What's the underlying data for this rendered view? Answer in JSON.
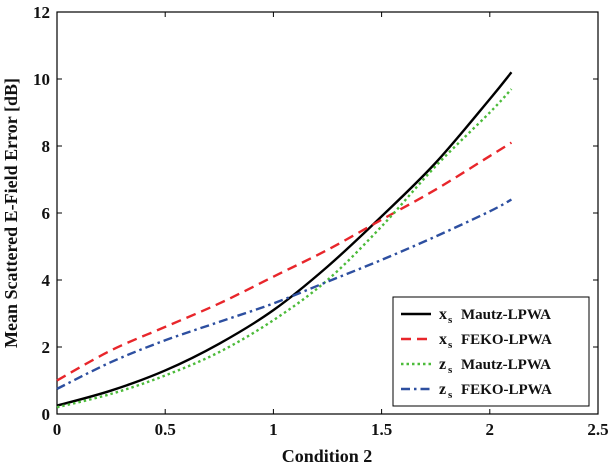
{
  "chart_data": {
    "type": "line",
    "xlabel": "Condition 2",
    "ylabel": "Mean Scattered E-Field Error [dB]",
    "xlim": [
      0,
      2.5
    ],
    "ylim": [
      0,
      12
    ],
    "xticks": [
      0,
      0.5,
      1,
      1.5,
      2,
      2.5
    ],
    "xtick_labels": [
      "0",
      "0.5",
      "1",
      "1.5",
      "2",
      "2.5"
    ],
    "yticks": [
      0,
      2,
      4,
      6,
      8,
      10,
      12
    ],
    "ytick_labels": [
      "0",
      "2",
      "4",
      "6",
      "8",
      "10",
      "12"
    ],
    "grid": false,
    "legend_position": "bottom-right",
    "series": [
      {
        "name": "Mautz-LPWA",
        "var": "x",
        "sub": "s",
        "color": "#000000",
        "dash": "solid",
        "x": [
          0,
          0.25,
          0.5,
          0.75,
          1.0,
          1.25,
          1.5,
          1.75,
          2.0,
          2.1
        ],
        "y": [
          0.25,
          0.7,
          1.3,
          2.1,
          3.1,
          4.4,
          5.9,
          7.5,
          9.4,
          10.2
        ]
      },
      {
        "name": "FEKO-LPWA",
        "var": "x",
        "sub": "s",
        "color": "#e8262b",
        "dash": "dash",
        "x": [
          0,
          0.25,
          0.5,
          0.75,
          1.0,
          1.25,
          1.5,
          1.75,
          2.0,
          2.1
        ],
        "y": [
          1.0,
          1.9,
          2.6,
          3.3,
          4.1,
          4.9,
          5.8,
          6.7,
          7.7,
          8.1
        ]
      },
      {
        "name": "Mautz-LPWA",
        "var": "z",
        "sub": "s",
        "color": "#4cbb3a",
        "dash": "dot",
        "x": [
          0,
          0.25,
          0.5,
          0.75,
          1.0,
          1.25,
          1.5,
          1.75,
          2.0,
          2.1
        ],
        "y": [
          0.2,
          0.6,
          1.15,
          1.85,
          2.8,
          4.0,
          5.6,
          7.4,
          9.0,
          9.7
        ]
      },
      {
        "name": "FEKO-LPWA",
        "var": "z",
        "sub": "s",
        "color": "#2d4fa0",
        "dash": "dashdot",
        "x": [
          0,
          0.25,
          0.5,
          0.75,
          1.0,
          1.25,
          1.5,
          1.75,
          2.0,
          2.1
        ],
        "y": [
          0.75,
          1.55,
          2.2,
          2.75,
          3.3,
          3.95,
          4.6,
          5.3,
          6.05,
          6.4
        ]
      }
    ]
  }
}
